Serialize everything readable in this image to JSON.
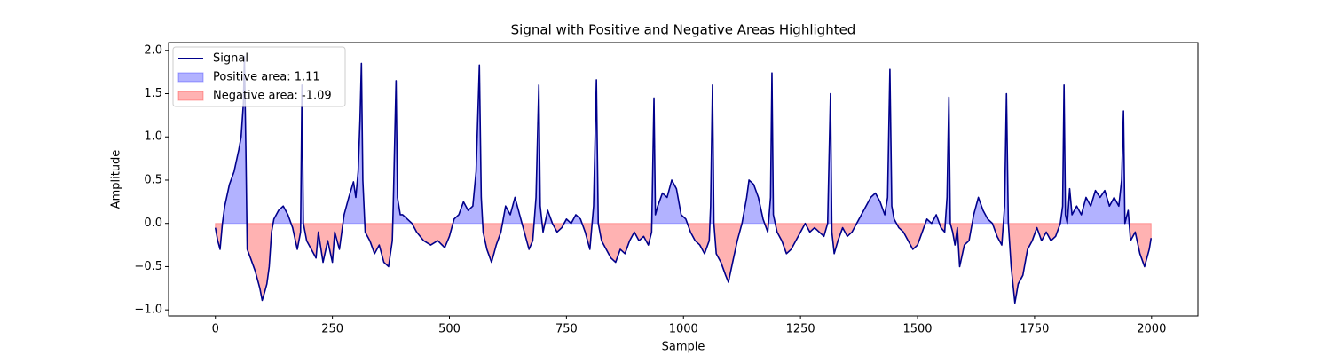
{
  "chart_data": {
    "type": "line",
    "title": "Signal with Positive and Negative Areas Highlighted",
    "xlabel": "Sample",
    "ylabel": "Amplitude",
    "xlim": [
      -99.95,
      2098.95
    ],
    "ylim": [
      -1.07,
      2.09
    ],
    "xticks": [
      0,
      250,
      500,
      750,
      1000,
      1250,
      1500,
      1750,
      2000
    ],
    "yticks": [
      {
        "value": -1.0,
        "label": "−1.0"
      },
      {
        "value": -0.5,
        "label": "−0.5"
      },
      {
        "value": 0.0,
        "label": "0.0"
      },
      {
        "value": 0.5,
        "label": "0.5"
      },
      {
        "value": 1.0,
        "label": "1.0"
      },
      {
        "value": 1.5,
        "label": "1.5"
      },
      {
        "value": 2.0,
        "label": "2.0"
      }
    ],
    "legend": "upper left",
    "x": [
      0,
      5,
      10,
      15,
      20,
      30,
      40,
      50,
      55,
      60,
      62,
      65,
      68,
      75,
      85,
      95,
      100,
      105,
      110,
      115,
      120,
      125,
      135,
      145,
      155,
      165,
      175,
      182,
      185,
      188,
      195,
      205,
      215,
      220,
      230,
      240,
      250,
      255,
      265,
      275,
      285,
      295,
      300,
      305,
      309,
      312,
      315,
      320,
      330,
      340,
      350,
      360,
      370,
      378,
      380,
      386,
      389,
      395,
      400,
      410,
      420,
      430,
      445,
      460,
      475,
      490,
      500,
      510,
      520,
      530,
      540,
      550,
      557,
      564,
      568,
      572,
      580,
      590,
      600,
      610,
      620,
      630,
      640,
      650,
      660,
      670,
      678,
      685,
      691,
      694,
      700,
      710,
      720,
      730,
      740,
      750,
      760,
      770,
      780,
      790,
      800,
      808,
      814,
      818,
      825,
      835,
      845,
      855,
      865,
      875,
      885,
      895,
      905,
      915,
      925,
      932,
      937,
      940,
      945,
      955,
      965,
      975,
      985,
      995,
      1005,
      1015,
      1025,
      1035,
      1045,
      1055,
      1058,
      1062,
      1065,
      1070,
      1080,
      1090,
      1096,
      1105,
      1115,
      1125,
      1135,
      1140,
      1150,
      1160,
      1170,
      1180,
      1186,
      1189,
      1192,
      1200,
      1210,
      1220,
      1230,
      1240,
      1250,
      1260,
      1270,
      1280,
      1290,
      1300,
      1308,
      1314,
      1317,
      1322,
      1330,
      1340,
      1350,
      1360,
      1370,
      1380,
      1390,
      1400,
      1410,
      1420,
      1430,
      1436,
      1441,
      1445,
      1450,
      1460,
      1470,
      1480,
      1490,
      1500,
      1510,
      1520,
      1530,
      1540,
      1550,
      1558,
      1563,
      1567,
      1570,
      1575,
      1580,
      1585,
      1590,
      1600,
      1610,
      1620,
      1630,
      1640,
      1650,
      1660,
      1670,
      1680,
      1686,
      1690,
      1694,
      1700,
      1708,
      1715,
      1725,
      1735,
      1745,
      1755,
      1765,
      1775,
      1785,
      1795,
      1805,
      1810,
      1813,
      1816,
      1820,
      1825,
      1830,
      1840,
      1850,
      1860,
      1870,
      1880,
      1890,
      1900,
      1910,
      1920,
      1930,
      1936,
      1940,
      1943,
      1950,
      1955,
      1965,
      1975,
      1985,
      1990,
      1995,
      1999
    ],
    "series": [
      {
        "name": "Signal",
        "color": "#00008b",
        "values": [
          -0.05,
          -0.2,
          -0.3,
          0.0,
          0.2,
          0.45,
          0.6,
          0.85,
          1.0,
          1.4,
          1.93,
          0.9,
          -0.3,
          -0.4,
          -0.55,
          -0.75,
          -0.89,
          -0.8,
          -0.7,
          -0.5,
          -0.1,
          0.05,
          0.15,
          0.2,
          0.1,
          -0.05,
          -0.3,
          -0.1,
          1.6,
          0.0,
          -0.2,
          -0.3,
          -0.4,
          -0.1,
          -0.45,
          -0.2,
          -0.45,
          -0.1,
          -0.3,
          0.1,
          0.3,
          0.48,
          0.3,
          0.6,
          1.2,
          1.85,
          0.5,
          -0.1,
          -0.2,
          -0.35,
          -0.25,
          -0.45,
          -0.5,
          -0.2,
          0.2,
          1.65,
          0.3,
          0.1,
          0.1,
          0.05,
          0.0,
          -0.1,
          -0.2,
          -0.25,
          -0.2,
          -0.28,
          -0.15,
          0.05,
          0.1,
          0.25,
          0.15,
          0.2,
          0.6,
          1.83,
          0.3,
          -0.1,
          -0.3,
          -0.45,
          -0.25,
          -0.1,
          0.2,
          0.1,
          0.3,
          0.1,
          -0.1,
          -0.3,
          -0.2,
          0.3,
          1.6,
          0.2,
          -0.1,
          0.15,
          0.0,
          -0.1,
          -0.05,
          0.05,
          0.0,
          0.1,
          0.05,
          -0.1,
          -0.3,
          0.2,
          1.66,
          0.0,
          -0.2,
          -0.3,
          -0.4,
          -0.45,
          -0.3,
          -0.35,
          -0.2,
          -0.1,
          -0.2,
          -0.15,
          -0.25,
          -0.1,
          1.45,
          0.1,
          0.2,
          0.35,
          0.3,
          0.5,
          0.4,
          0.1,
          0.05,
          -0.1,
          -0.2,
          -0.25,
          -0.35,
          -0.2,
          0.2,
          1.6,
          0.0,
          -0.35,
          -0.45,
          -0.6,
          -0.68,
          -0.45,
          -0.2,
          0.0,
          0.3,
          0.5,
          0.45,
          0.3,
          0.05,
          -0.1,
          0.3,
          1.74,
          0.1,
          -0.1,
          -0.2,
          -0.35,
          -0.3,
          -0.2,
          -0.1,
          0.0,
          -0.1,
          -0.05,
          -0.1,
          -0.15,
          0.0,
          1.5,
          -0.1,
          -0.35,
          -0.2,
          -0.05,
          -0.15,
          -0.1,
          0.0,
          0.1,
          0.2,
          0.3,
          0.35,
          0.25,
          0.1,
          0.3,
          1.78,
          0.2,
          0.05,
          -0.05,
          -0.1,
          -0.2,
          -0.3,
          -0.25,
          -0.1,
          0.05,
          0.0,
          0.1,
          -0.05,
          -0.1,
          0.3,
          1.46,
          0.0,
          -0.1,
          -0.25,
          -0.05,
          -0.5,
          -0.25,
          -0.2,
          0.1,
          0.3,
          0.15,
          0.05,
          0.0,
          -0.15,
          -0.25,
          0.2,
          1.5,
          0.0,
          -0.5,
          -0.92,
          -0.7,
          -0.6,
          -0.3,
          -0.2,
          -0.05,
          -0.2,
          -0.1,
          -0.2,
          -0.15,
          0.0,
          0.2,
          1.6,
          0.1,
          0.0,
          0.4,
          0.1,
          0.2,
          0.1,
          0.3,
          0.2,
          0.38,
          0.3,
          0.38,
          0.2,
          0.3,
          0.2,
          0.5,
          1.3,
          0.0,
          0.15,
          -0.2,
          -0.1,
          -0.35,
          -0.5,
          -0.4,
          -0.3,
          -0.17
        ]
      }
    ],
    "fills": [
      {
        "name": "Positive area: 1.11",
        "color": "#0000ff",
        "alpha": 0.3,
        "where": "positive"
      },
      {
        "name": "Negative area: -1.09",
        "color": "#ff0000",
        "alpha": 0.3,
        "where": "negative"
      }
    ]
  }
}
